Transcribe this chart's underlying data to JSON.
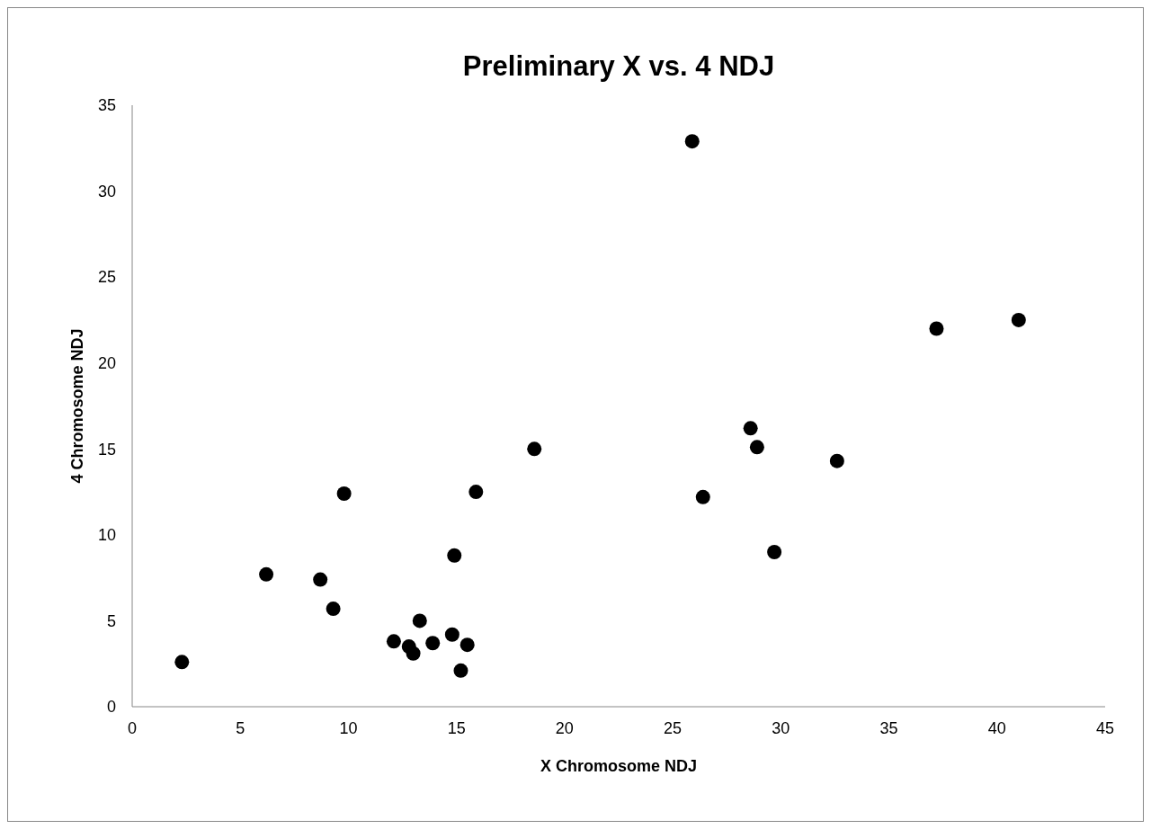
{
  "chart_data": {
    "type": "scatter",
    "title": "Preliminary X vs. 4 NDJ",
    "xlabel": "X Chromosome NDJ",
    "ylabel": "4 Chromosome NDJ",
    "x": [
      2.3,
      6.2,
      8.7,
      9.3,
      9.8,
      12.1,
      12.8,
      13.0,
      13.3,
      13.9,
      14.8,
      14.9,
      15.2,
      15.5,
      15.9,
      18.6,
      25.9,
      26.4,
      28.6,
      28.9,
      29.7,
      32.6,
      37.2,
      41.0
    ],
    "values": [
      2.6,
      7.7,
      7.4,
      5.7,
      12.4,
      3.8,
      3.5,
      3.1,
      5.0,
      3.7,
      4.2,
      8.8,
      2.1,
      3.6,
      12.5,
      15.0,
      32.9,
      12.2,
      16.2,
      15.1,
      9.0,
      14.3,
      22.0,
      22.5
    ],
    "color": "#000000",
    "marker": "circle",
    "xlim": [
      0,
      45
    ],
    "xticks": [
      0,
      5,
      10,
      15,
      20,
      25,
      30,
      35,
      40,
      45
    ],
    "ylim": [
      0,
      35
    ],
    "yticks": [
      0,
      5,
      10,
      15,
      20,
      25,
      30,
      35
    ],
    "grid": false,
    "legend": false
  }
}
